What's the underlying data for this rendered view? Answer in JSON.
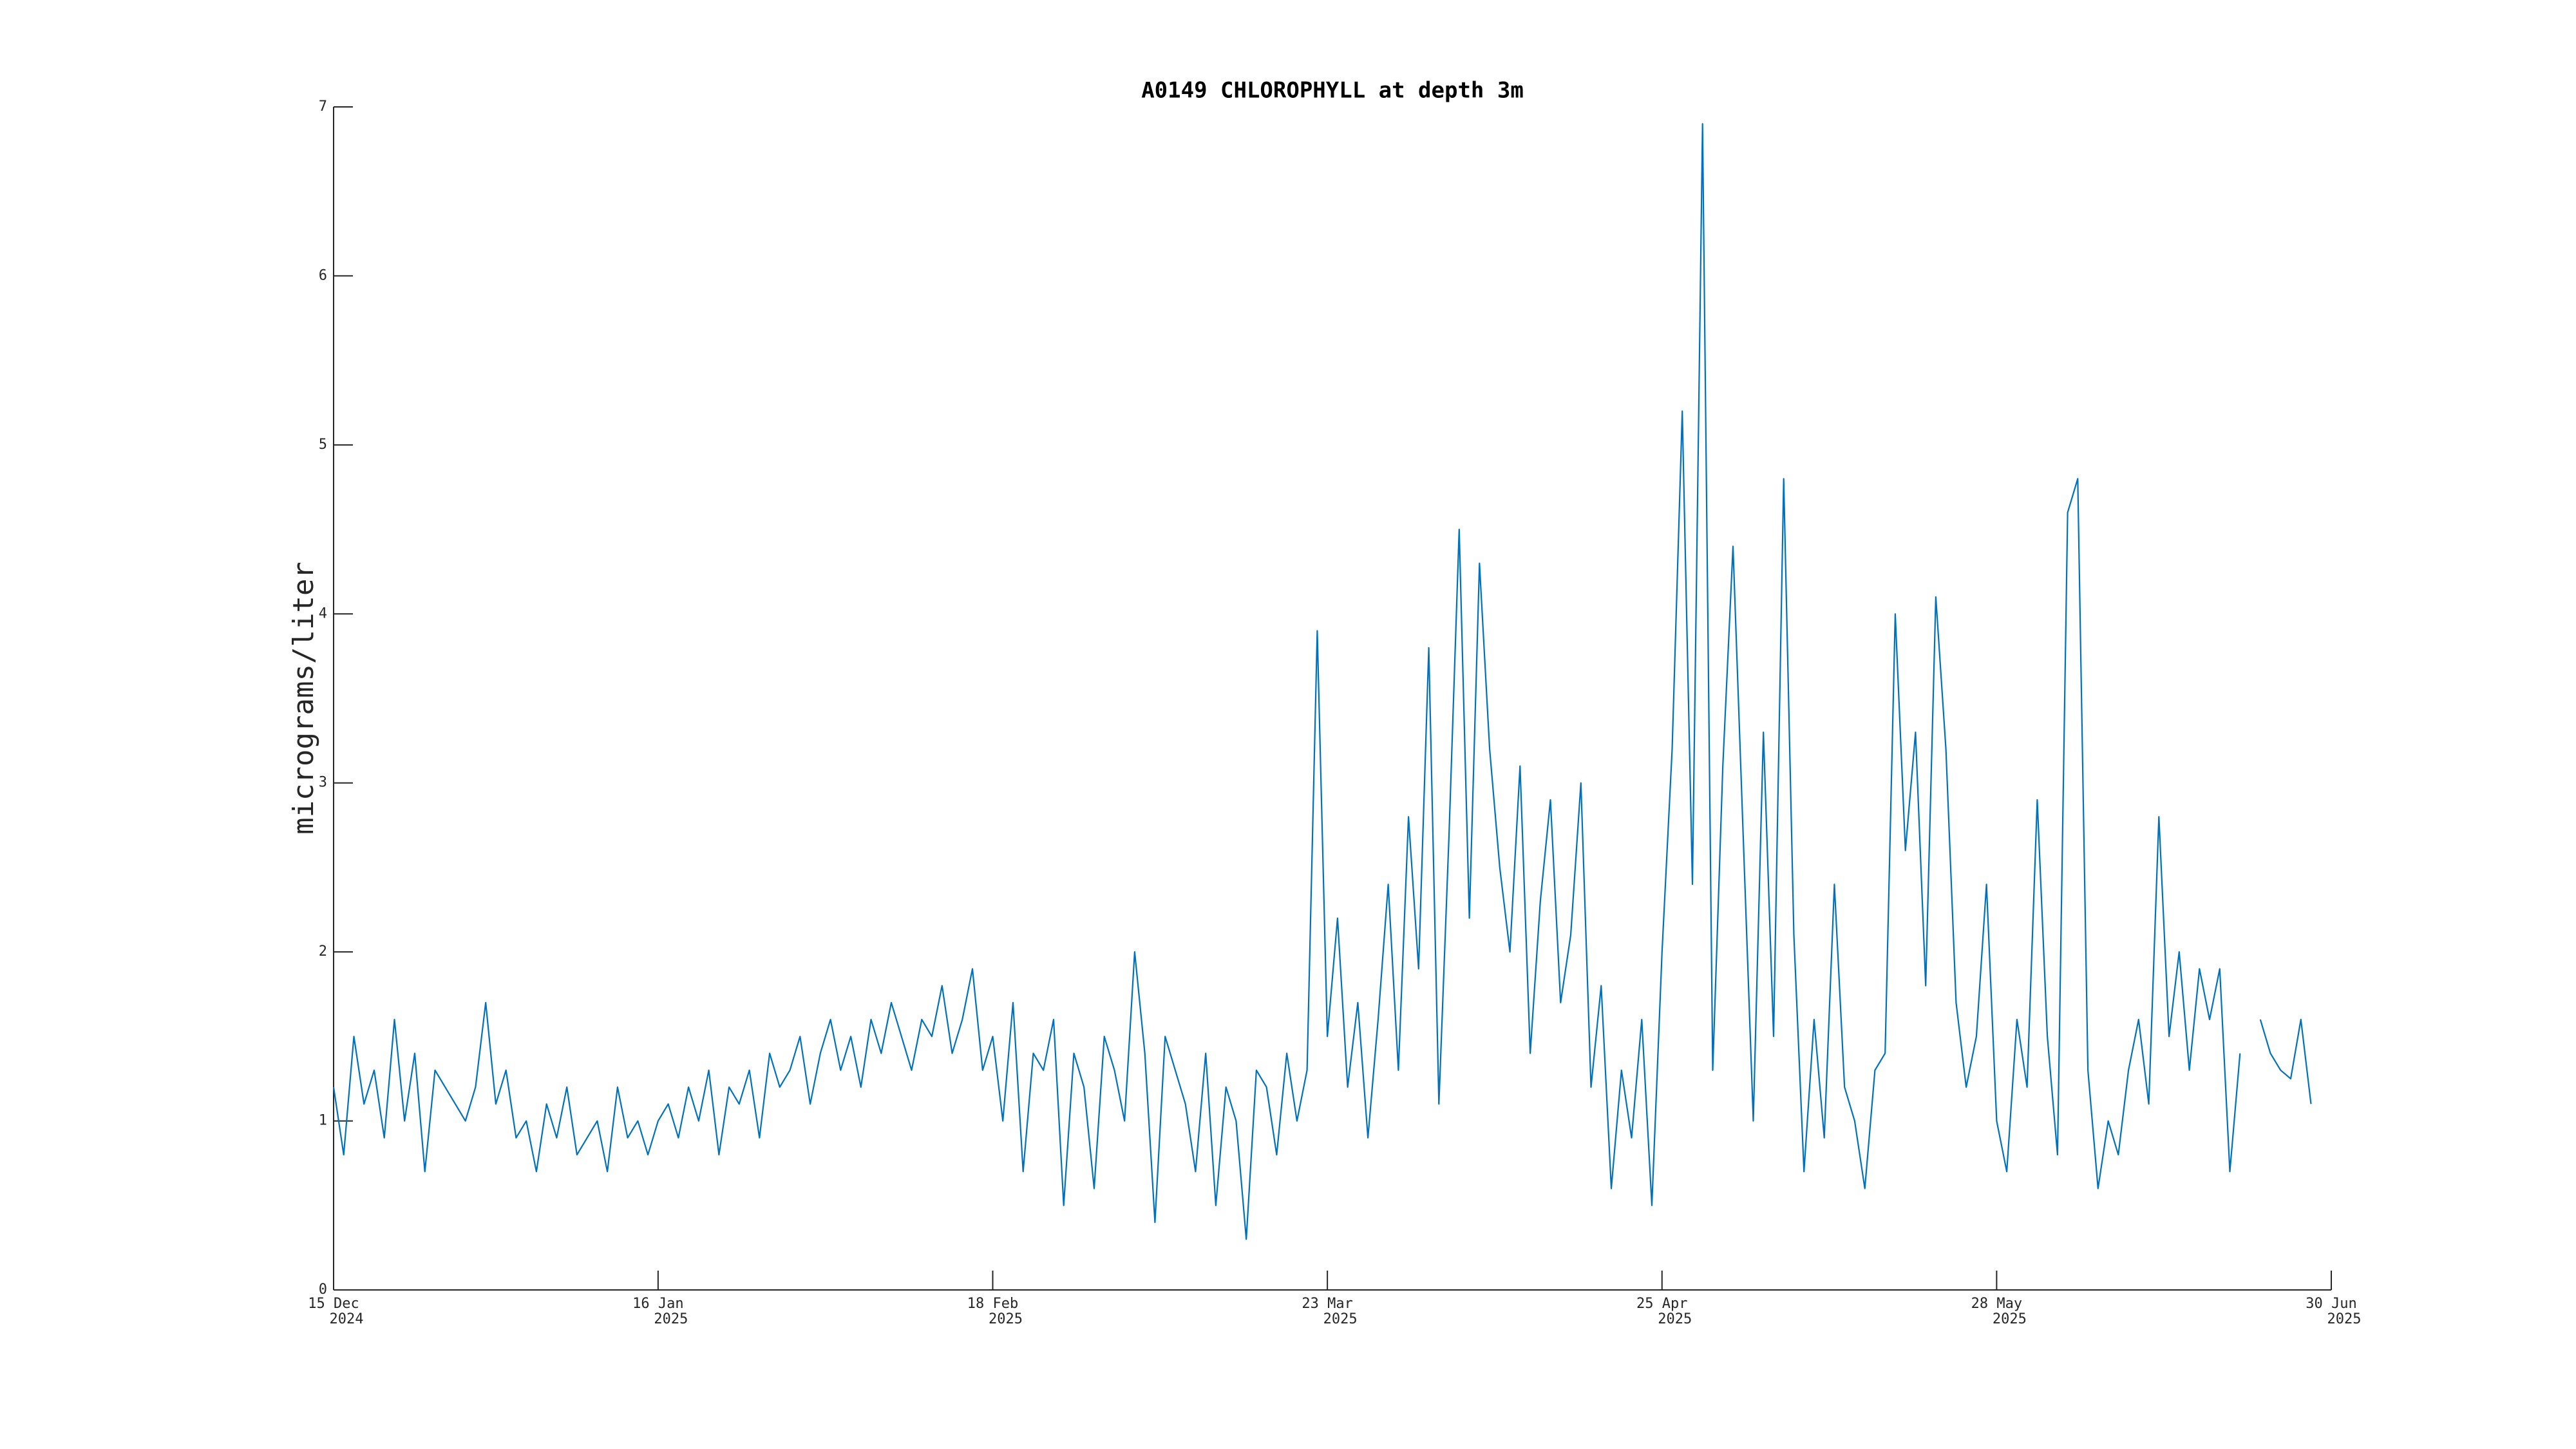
{
  "chart_data": {
    "type": "line",
    "title": "A0149 CHLOROPHYLL at depth 3m",
    "y_label": "micrograms/liter",
    "x": [
      "2024-12-15",
      "2024-12-16",
      "2024-12-17",
      "2024-12-18",
      "2024-12-19",
      "2024-12-20",
      "2024-12-21",
      "2024-12-22",
      "2024-12-23",
      "2024-12-24",
      "2024-12-25",
      "2024-12-26",
      "2024-12-27",
      "2024-12-28",
      "2024-12-29",
      "2024-12-30",
      "2024-12-31",
      "2025-01-01",
      "2025-01-02",
      "2025-01-03",
      "2025-01-04",
      "2025-01-05",
      "2025-01-06",
      "2025-01-07",
      "2025-01-08",
      "2025-01-09",
      "2025-01-10",
      "2025-01-11",
      "2025-01-12",
      "2025-01-13",
      "2025-01-14",
      "2025-01-15",
      "2025-01-16",
      "2025-01-17",
      "2025-01-18",
      "2025-01-19",
      "2025-01-20",
      "2025-01-21",
      "2025-01-22",
      "2025-01-23",
      "2025-01-24",
      "2025-01-25",
      "2025-01-26",
      "2025-01-27",
      "2025-01-28",
      "2025-01-29",
      "2025-01-30",
      "2025-01-31",
      "2025-02-01",
      "2025-02-02",
      "2025-02-03",
      "2025-02-04",
      "2025-02-05",
      "2025-02-06",
      "2025-02-07",
      "2025-02-08",
      "2025-02-09",
      "2025-02-10",
      "2025-02-11",
      "2025-02-12",
      "2025-02-13",
      "2025-02-14",
      "2025-02-15",
      "2025-02-16",
      "2025-02-17",
      "2025-02-18",
      "2025-02-19",
      "2025-02-20",
      "2025-02-21",
      "2025-02-22",
      "2025-02-23",
      "2025-02-24",
      "2025-02-25",
      "2025-02-26",
      "2025-02-27",
      "2025-02-28",
      "2025-03-01",
      "2025-03-02",
      "2025-03-03",
      "2025-03-04",
      "2025-03-05",
      "2025-03-06",
      "2025-03-07",
      "2025-03-08",
      "2025-03-09",
      "2025-03-10",
      "2025-03-11",
      "2025-03-12",
      "2025-03-13",
      "2025-03-14",
      "2025-03-15",
      "2025-03-16",
      "2025-03-17",
      "2025-03-18",
      "2025-03-19",
      "2025-03-20",
      "2025-03-21",
      "2025-03-22",
      "2025-03-23",
      "2025-03-24",
      "2025-03-25",
      "2025-03-26",
      "2025-03-27",
      "2025-03-28",
      "2025-03-29",
      "2025-03-30",
      "2025-03-31",
      "2025-04-01",
      "2025-04-02",
      "2025-04-03",
      "2025-04-04",
      "2025-04-05",
      "2025-04-06",
      "2025-04-07",
      "2025-04-08",
      "2025-04-09",
      "2025-04-10",
      "2025-04-11",
      "2025-04-12",
      "2025-04-13",
      "2025-04-14",
      "2025-04-15",
      "2025-04-16",
      "2025-04-17",
      "2025-04-18",
      "2025-04-19",
      "2025-04-20",
      "2025-04-21",
      "2025-04-22",
      "2025-04-23",
      "2025-04-24",
      "2025-04-25",
      "2025-04-26",
      "2025-04-27",
      "2025-04-28",
      "2025-04-29",
      "2025-04-30",
      "2025-05-01",
      "2025-05-02",
      "2025-05-03",
      "2025-05-04",
      "2025-05-05",
      "2025-05-06",
      "2025-05-07",
      "2025-05-08",
      "2025-05-09",
      "2025-05-10",
      "2025-05-11",
      "2025-05-12",
      "2025-05-13",
      "2025-05-14",
      "2025-05-15",
      "2025-05-16",
      "2025-05-17",
      "2025-05-18",
      "2025-05-19",
      "2025-05-20",
      "2025-05-21",
      "2025-05-22",
      "2025-05-23",
      "2025-05-24",
      "2025-05-25",
      "2025-05-26",
      "2025-05-27",
      "2025-05-28",
      "2025-05-29",
      "2025-05-30",
      "2025-05-31",
      "2025-06-01",
      "2025-06-02",
      "2025-06-03",
      "2025-06-04",
      "2025-06-05",
      "2025-06-06",
      "2025-06-07",
      "2025-06-08",
      "2025-06-09",
      "2025-06-10",
      "2025-06-11",
      "2025-06-12",
      "2025-06-13",
      "2025-06-14",
      "2025-06-15",
      "2025-06-16",
      "2025-06-17",
      "2025-06-18",
      "2025-06-19",
      "2025-06-20",
      "2025-06-21",
      "2025-06-22",
      "2025-06-23",
      "2025-06-24",
      "2025-06-25",
      "2025-06-26",
      "2025-06-27",
      "2025-06-28"
    ],
    "series": [
      {
        "color": "#0072bd",
        "values": [
          1.2,
          0.8,
          1.5,
          1.1,
          1.3,
          0.9,
          1.6,
          1.0,
          1.4,
          0.7,
          1.3,
          1.2,
          1.1,
          1.0,
          1.2,
          1.7,
          1.1,
          1.3,
          0.9,
          1.0,
          0.7,
          1.1,
          0.9,
          1.2,
          0.8,
          0.9,
          1.0,
          0.7,
          1.2,
          0.9,
          1.0,
          0.8,
          1.0,
          1.1,
          0.9,
          1.2,
          1.0,
          1.3,
          0.8,
          1.2,
          1.1,
          1.3,
          0.9,
          1.4,
          1.2,
          1.3,
          1.5,
          1.1,
          1.4,
          1.6,
          1.3,
          1.5,
          1.2,
          1.6,
          1.4,
          1.7,
          1.5,
          1.3,
          1.6,
          1.5,
          1.8,
          1.4,
          1.6,
          1.9,
          1.3,
          1.5,
          1.0,
          1.7,
          0.7,
          1.4,
          1.3,
          1.6,
          0.5,
          1.4,
          1.2,
          0.6,
          1.5,
          1.3,
          1.0,
          2.0,
          1.4,
          0.4,
          1.5,
          1.3,
          1.1,
          0.7,
          1.4,
          0.5,
          1.2,
          1.0,
          0.3,
          1.3,
          1.2,
          0.8,
          1.4,
          1.0,
          1.3,
          3.9,
          1.5,
          2.2,
          1.2,
          1.7,
          0.9,
          1.6,
          2.4,
          1.3,
          2.8,
          1.9,
          3.8,
          1.1,
          2.7,
          4.5,
          2.2,
          4.3,
          3.2,
          2.5,
          2.0,
          3.1,
          1.4,
          2.3,
          2.9,
          1.7,
          2.1,
          3.0,
          1.2,
          1.8,
          0.6,
          1.3,
          0.9,
          1.6,
          0.5,
          2.0,
          3.2,
          5.2,
          2.4,
          6.9,
          1.3,
          3.1,
          4.4,
          2.7,
          1.0,
          3.3,
          1.5,
          4.8,
          2.1,
          0.7,
          1.6,
          0.9,
          2.4,
          1.2,
          1.0,
          0.6,
          1.3,
          1.4,
          4.0,
          2.6,
          3.3,
          1.8,
          4.1,
          3.2,
          1.7,
          1.2,
          1.5,
          2.4,
          1.0,
          0.7,
          1.6,
          1.2,
          2.9,
          1.5,
          0.8,
          4.6,
          4.8,
          1.3,
          0.6,
          1.0,
          0.8,
          1.3,
          1.6,
          1.1,
          2.8,
          1.5,
          2.0,
          1.3,
          1.9,
          1.6,
          1.9,
          0.7,
          1.4,
          null,
          1.6,
          1.4,
          1.3,
          1.25,
          1.6,
          1.1
        ]
      }
    ],
    "xlim": [
      "2024-12-15",
      "2025-06-30"
    ],
    "xticks": [
      {
        "value": "2024-12-15",
        "label": [
          "15 Dec",
          "2024"
        ]
      },
      {
        "value": "2025-01-16",
        "label": [
          "16 Jan",
          "2025"
        ]
      },
      {
        "value": "2025-02-18",
        "label": [
          "18 Feb",
          "2025"
        ]
      },
      {
        "value": "2025-03-23",
        "label": [
          "23 Mar",
          "2025"
        ]
      },
      {
        "value": "2025-04-25",
        "label": [
          "25 Apr",
          "2025"
        ]
      },
      {
        "value": "2025-05-28",
        "label": [
          "28 May",
          "2025"
        ]
      },
      {
        "value": "2025-06-30",
        "label": [
          "30 Jun",
          "2025"
        ]
      }
    ],
    "ylim": [
      0,
      7
    ],
    "yticks": [
      0,
      1,
      2,
      3,
      4,
      5,
      6,
      7
    ],
    "grid": false
  }
}
